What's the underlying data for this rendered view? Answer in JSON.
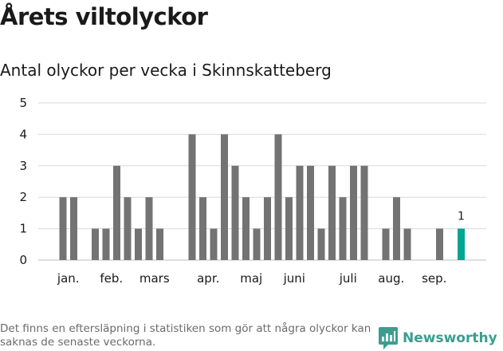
{
  "header": {
    "title": "Årets viltolyckor",
    "subtitle": "Antal olyckor per vecka i Skinnskatteberg"
  },
  "footer": {
    "note": "Det finns en eftersläpning i statistiken som gör att några olyckor kan saknas de senaste veckorna.",
    "brand": "Newsworthy"
  },
  "colors": {
    "bar": "#737373",
    "highlight": "#00a693",
    "grid": "#d9d9d9",
    "brand": "#3a9e8f"
  },
  "chart_data": {
    "type": "bar",
    "title": "Antal olyckor per vecka i Skinnskatteberg",
    "xlabel": "",
    "ylabel": "",
    "ylim": [
      0,
      5
    ],
    "yticks": [
      0,
      1,
      2,
      3,
      4,
      5
    ],
    "grid": true,
    "legend": "none",
    "weeks": [
      1,
      2,
      3,
      4,
      5,
      6,
      7,
      8,
      9,
      10,
      11,
      12,
      13,
      14,
      15,
      16,
      17,
      18,
      19,
      20,
      21,
      22,
      23,
      24,
      25,
      26,
      27,
      28,
      29,
      30,
      31,
      32,
      33,
      34,
      35,
      36,
      37,
      38
    ],
    "values": [
      2,
      2,
      0,
      1,
      1,
      3,
      2,
      1,
      2,
      1,
      0,
      0,
      4,
      2,
      1,
      4,
      3,
      2,
      1,
      2,
      4,
      2,
      3,
      3,
      1,
      3,
      2,
      3,
      3,
      0,
      1,
      2,
      1,
      0,
      0,
      1,
      0,
      1
    ],
    "highlight_index": 37,
    "highlight_label": "1",
    "month_labels": [
      {
        "label": "jan.",
        "week": 1.5
      },
      {
        "label": "feb.",
        "week": 5.5
      },
      {
        "label": "mars",
        "week": 9.5
      },
      {
        "label": "apr.",
        "week": 14.5
      },
      {
        "label": "maj",
        "week": 18.5
      },
      {
        "label": "juni",
        "week": 22.5
      },
      {
        "label": "juli",
        "week": 27.5
      },
      {
        "label": "aug.",
        "week": 31.5
      },
      {
        "label": "sep.",
        "week": 35.5
      }
    ]
  }
}
